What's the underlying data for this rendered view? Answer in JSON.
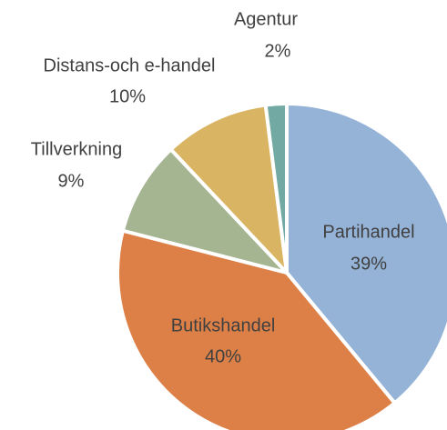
{
  "chart_data": {
    "type": "pie",
    "categories": [
      "Partihandel",
      "Butikshandel",
      "Tillverkning",
      "Distans-och e-handel",
      "Agentur"
    ],
    "values": [
      39,
      40,
      9,
      10,
      2
    ],
    "value_labels": [
      "39%",
      "40%",
      "9%",
      "10%",
      "2%"
    ],
    "colors": [
      "#95b3d7",
      "#dd8047",
      "#a5b592",
      "#d9b462",
      "#72aaa3"
    ]
  }
}
